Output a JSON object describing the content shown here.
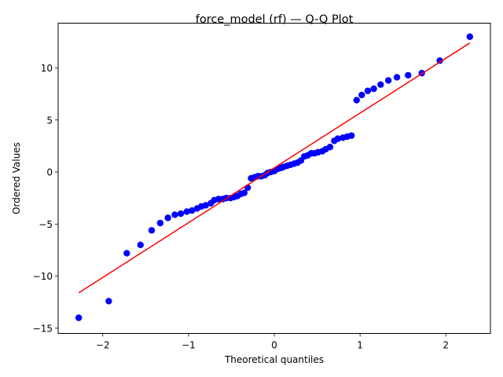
{
  "chart_data": {
    "type": "scatter",
    "title": "force_model (rf) — Q-Q Plot",
    "xlabel": "Theoretical quantiles",
    "ylabel": "Ordered Values",
    "xlim": [
      -2.52,
      2.52
    ],
    "ylim": [
      -15.5,
      14.3
    ],
    "xticks": [
      -2,
      -1,
      0,
      1,
      2
    ],
    "xtick_labels": [
      "−2",
      "−1",
      "0",
      "1",
      "2"
    ],
    "yticks": [
      -15,
      -10,
      -5,
      0,
      5,
      10
    ],
    "ytick_labels": [
      "−15",
      "−10",
      "−5",
      "0",
      "5",
      "10"
    ],
    "grid": false,
    "legend": "none",
    "colors": {
      "points": "#0000ff",
      "fit_line": "#ff0000"
    },
    "series": [
      {
        "values": [
          [
            -2.28,
            -14.0
          ],
          [
            -1.93,
            -12.4
          ],
          [
            -1.72,
            -7.8
          ],
          [
            -1.56,
            -7.0
          ],
          [
            -1.43,
            -5.6
          ],
          [
            -1.33,
            -4.9
          ],
          [
            -1.24,
            -4.4
          ],
          [
            -1.16,
            -4.1
          ],
          [
            -1.09,
            -4.0
          ],
          [
            -1.02,
            -3.8
          ],
          [
            -0.96,
            -3.7
          ],
          [
            -0.9,
            -3.5
          ],
          [
            -0.85,
            -3.3
          ],
          [
            -0.8,
            -3.2
          ],
          [
            -0.74,
            -3.0
          ],
          [
            -0.7,
            -2.7
          ],
          [
            -0.65,
            -2.6
          ],
          [
            -0.6,
            -2.6
          ],
          [
            -0.56,
            -2.5
          ],
          [
            -0.51,
            -2.5
          ],
          [
            -0.47,
            -2.4
          ],
          [
            -0.43,
            -2.3
          ],
          [
            -0.39,
            -2.1
          ],
          [
            -0.35,
            -2.0
          ],
          [
            -0.31,
            -1.5
          ],
          [
            -0.27,
            -0.6
          ],
          [
            -0.23,
            -0.5
          ],
          [
            -0.19,
            -0.4
          ],
          [
            -0.15,
            -0.4
          ],
          [
            -0.11,
            -0.3
          ],
          [
            -0.08,
            -0.1
          ],
          [
            -0.04,
            0.0
          ],
          [
            0.0,
            0.1
          ],
          [
            0.04,
            0.3
          ],
          [
            0.08,
            0.4
          ],
          [
            0.11,
            0.5
          ],
          [
            0.15,
            0.6
          ],
          [
            0.19,
            0.7
          ],
          [
            0.23,
            0.8
          ],
          [
            0.27,
            0.9
          ],
          [
            0.31,
            1.1
          ],
          [
            0.35,
            1.5
          ],
          [
            0.39,
            1.6
          ],
          [
            0.43,
            1.8
          ],
          [
            0.47,
            1.8
          ],
          [
            0.51,
            1.9
          ],
          [
            0.56,
            2.0
          ],
          [
            0.6,
            2.2
          ],
          [
            0.65,
            2.4
          ],
          [
            0.7,
            3.0
          ],
          [
            0.74,
            3.2
          ],
          [
            0.8,
            3.3
          ],
          [
            0.85,
            3.4
          ],
          [
            0.9,
            3.5
          ],
          [
            0.96,
            6.9
          ],
          [
            1.02,
            7.4
          ],
          [
            1.09,
            7.8
          ],
          [
            1.16,
            8.0
          ],
          [
            1.24,
            8.4
          ],
          [
            1.33,
            8.8
          ],
          [
            1.43,
            9.1
          ],
          [
            1.56,
            9.3
          ],
          [
            1.72,
            9.5
          ],
          [
            1.93,
            10.7
          ],
          [
            2.28,
            13.0
          ]
        ]
      }
    ],
    "fit_line": {
      "x": [
        -2.28,
        2.28
      ],
      "y": [
        -11.6,
        12.4
      ]
    }
  }
}
